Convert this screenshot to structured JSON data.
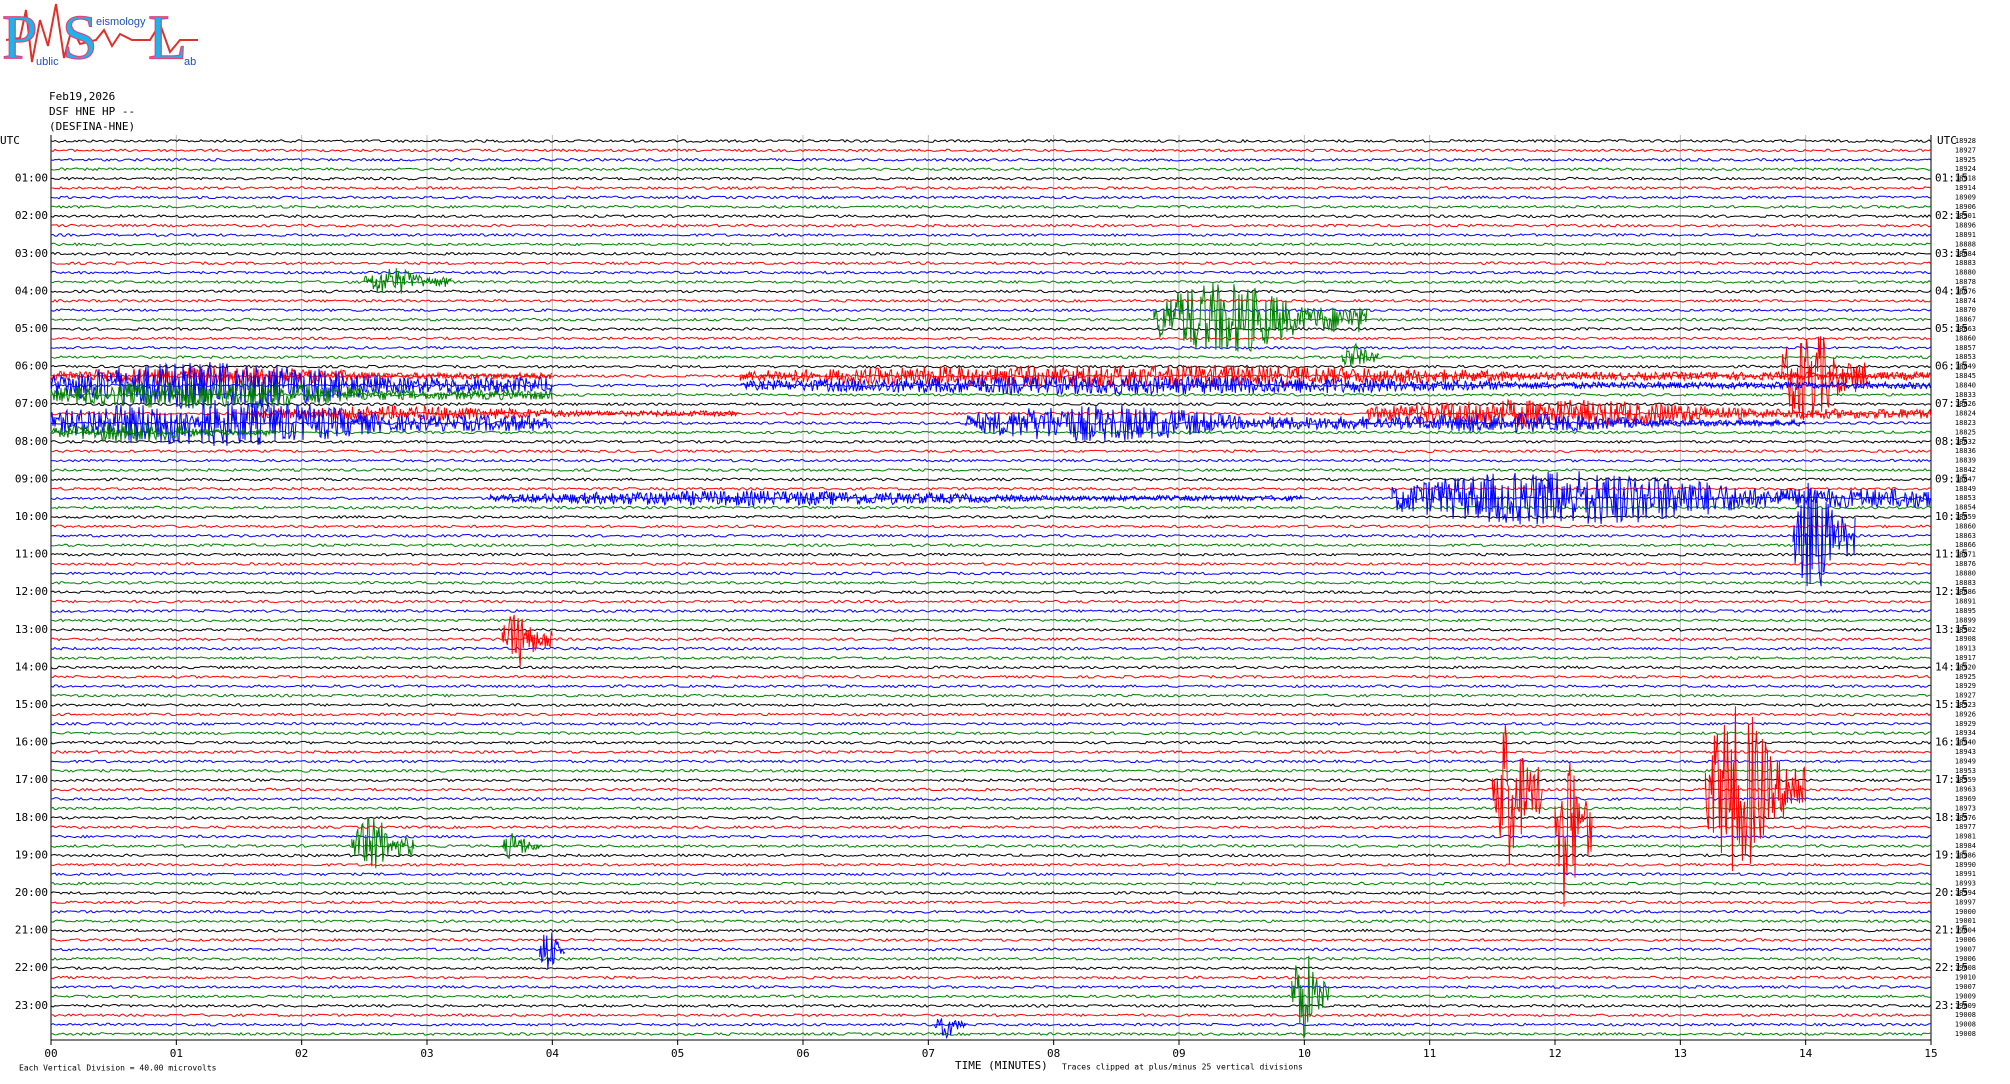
{
  "chart_data": {
    "type": "helicorder",
    "logo": {
      "big": [
        "P",
        "S",
        "L"
      ],
      "small": [
        "ublic",
        "eismology",
        "ab"
      ]
    },
    "date": "Feb19,2026",
    "channel": "DSF HNE HP --",
    "station": "(DESFINA-HNE)",
    "left_header": "UTC",
    "right_header": "UTC",
    "left_labels": [
      "01:00",
      "02:00",
      "03:00",
      "04:00",
      "05:00",
      "06:00",
      "07:00",
      "08:00",
      "09:00",
      "10:00",
      "11:00",
      "12:00",
      "13:00",
      "14:00",
      "15:00",
      "16:00",
      "17:00",
      "18:00",
      "19:00",
      "20:00",
      "21:00",
      "22:00",
      "23:00"
    ],
    "right_labels": [
      "01:15",
      "02:15",
      "03:15",
      "04:15",
      "05:15",
      "06:15",
      "07:15",
      "08:15",
      "09:15",
      "10:15",
      "11:15",
      "12:15",
      "13:15",
      "14:15",
      "15:15",
      "16:15",
      "17:15",
      "18:15",
      "19:15",
      "20:15",
      "21:15",
      "22:15",
      "23:15"
    ],
    "trace_colors": [
      "#000000",
      "#ff0000",
      "#0000ff",
      "#008000"
    ],
    "trace_counts": [
      18928,
      18927,
      18925,
      18924,
      18918,
      18914,
      18909,
      18906,
      18901,
      18896,
      18891,
      18888,
      18884,
      18883,
      18880,
      18878,
      18876,
      18874,
      18870,
      18867,
      18863,
      18860,
      18857,
      18853,
      18849,
      18845,
      18840,
      18833,
      18826,
      18824,
      18823,
      18825,
      18832,
      18836,
      18839,
      18842,
      18847,
      18849,
      18853,
      18854,
      18859,
      18860,
      18863,
      18866,
      18871,
      18876,
      18880,
      18883,
      18886,
      18891,
      18895,
      18899,
      18902,
      18908,
      18913,
      18917,
      18920,
      18925,
      18929,
      18927,
      18923,
      18926,
      18929,
      18934,
      18940,
      18943,
      18949,
      18953,
      18959,
      18963,
      18969,
      18973,
      18976,
      18977,
      18981,
      18984,
      18986,
      18990,
      18991,
      18993,
      18994,
      18997,
      19000,
      19001,
      19004,
      19006,
      19007,
      19006,
      19008,
      19010,
      19007,
      19009,
      19009,
      19008,
      19008,
      19008
    ],
    "xlim": [
      0,
      15
    ],
    "xticks": [
      {
        "value": 0,
        "label": "00"
      },
      {
        "value": 1,
        "label": "01"
      },
      {
        "value": 2,
        "label": "02"
      },
      {
        "value": 3,
        "label": "03"
      },
      {
        "value": 4,
        "label": "04"
      },
      {
        "value": 5,
        "label": "05"
      },
      {
        "value": 6,
        "label": "06"
      },
      {
        "value": 7,
        "label": "07"
      },
      {
        "value": 8,
        "label": "08"
      },
      {
        "value": 9,
        "label": "09"
      },
      10,
      11,
      12,
      13,
      14,
      15
    ],
    "xlabel": "TIME (MINUTES)",
    "scale_note": "Each Vertical Division =   40.00 microvolts",
    "clip_note": "Traces clipped at plus/minus 25 vertical divisions",
    "grid": true,
    "events": [
      {
        "trace": 15,
        "start": 2.5,
        "end": 3.2,
        "amp": 1.5
      },
      {
        "trace": 19,
        "start": 8.8,
        "end": 10.5,
        "amp": 4
      },
      {
        "trace": 23,
        "start": 10.3,
        "end": 10.6,
        "amp": 1.5
      },
      {
        "trace": 25,
        "start": 0,
        "end": 4,
        "amp": 1
      },
      {
        "trace": 25,
        "start": 5.5,
        "end": 15,
        "amp": 1.2
      },
      {
        "trace": 25,
        "start": 13.8,
        "end": 14.5,
        "amp": 5
      },
      {
        "trace": 26,
        "start": 0,
        "end": 4,
        "amp": 2.5
      },
      {
        "trace": 26,
        "start": 5.5,
        "end": 15,
        "amp": 1
      },
      {
        "trace": 27,
        "start": 0,
        "end": 4,
        "amp": 1.5
      },
      {
        "trace": 29,
        "start": 1.6,
        "end": 5.5,
        "amp": 0.8
      },
      {
        "trace": 29,
        "start": 10.5,
        "end": 15,
        "amp": 1.5
      },
      {
        "trace": 30,
        "start": 0,
        "end": 4,
        "amp": 2.5
      },
      {
        "trace": 30,
        "start": 7.3,
        "end": 10.5,
        "amp": 2
      },
      {
        "trace": 30,
        "start": 10.5,
        "end": 14,
        "amp": 1
      },
      {
        "trace": 31,
        "start": 0,
        "end": 1.8,
        "amp": 1
      },
      {
        "trace": 38,
        "start": 3.5,
        "end": 10,
        "amp": 0.8
      },
      {
        "trace": 38,
        "start": 10.7,
        "end": 15,
        "amp": 3
      },
      {
        "trace": 42,
        "start": 13.9,
        "end": 14.4,
        "amp": 6
      },
      {
        "trace": 53,
        "start": 3.6,
        "end": 4.0,
        "amp": 3
      },
      {
        "trace": 69,
        "start": 11.5,
        "end": 11.9,
        "amp": 8
      },
      {
        "trace": 73,
        "start": 12.0,
        "end": 12.3,
        "amp": 9
      },
      {
        "trace": 69,
        "start": 13.2,
        "end": 14.0,
        "amp": 9
      },
      {
        "trace": 75,
        "start": 2.4,
        "end": 2.9,
        "amp": 3
      },
      {
        "trace": 75,
        "start": 3.6,
        "end": 3.9,
        "amp": 1.5
      },
      {
        "trace": 86,
        "start": 3.9,
        "end": 4.1,
        "amp": 2.5
      },
      {
        "trace": 91,
        "start": 9.9,
        "end": 10.2,
        "amp": 5
      },
      {
        "trace": 94,
        "start": 7.05,
        "end": 7.3,
        "amp": 1.5
      }
    ]
  }
}
